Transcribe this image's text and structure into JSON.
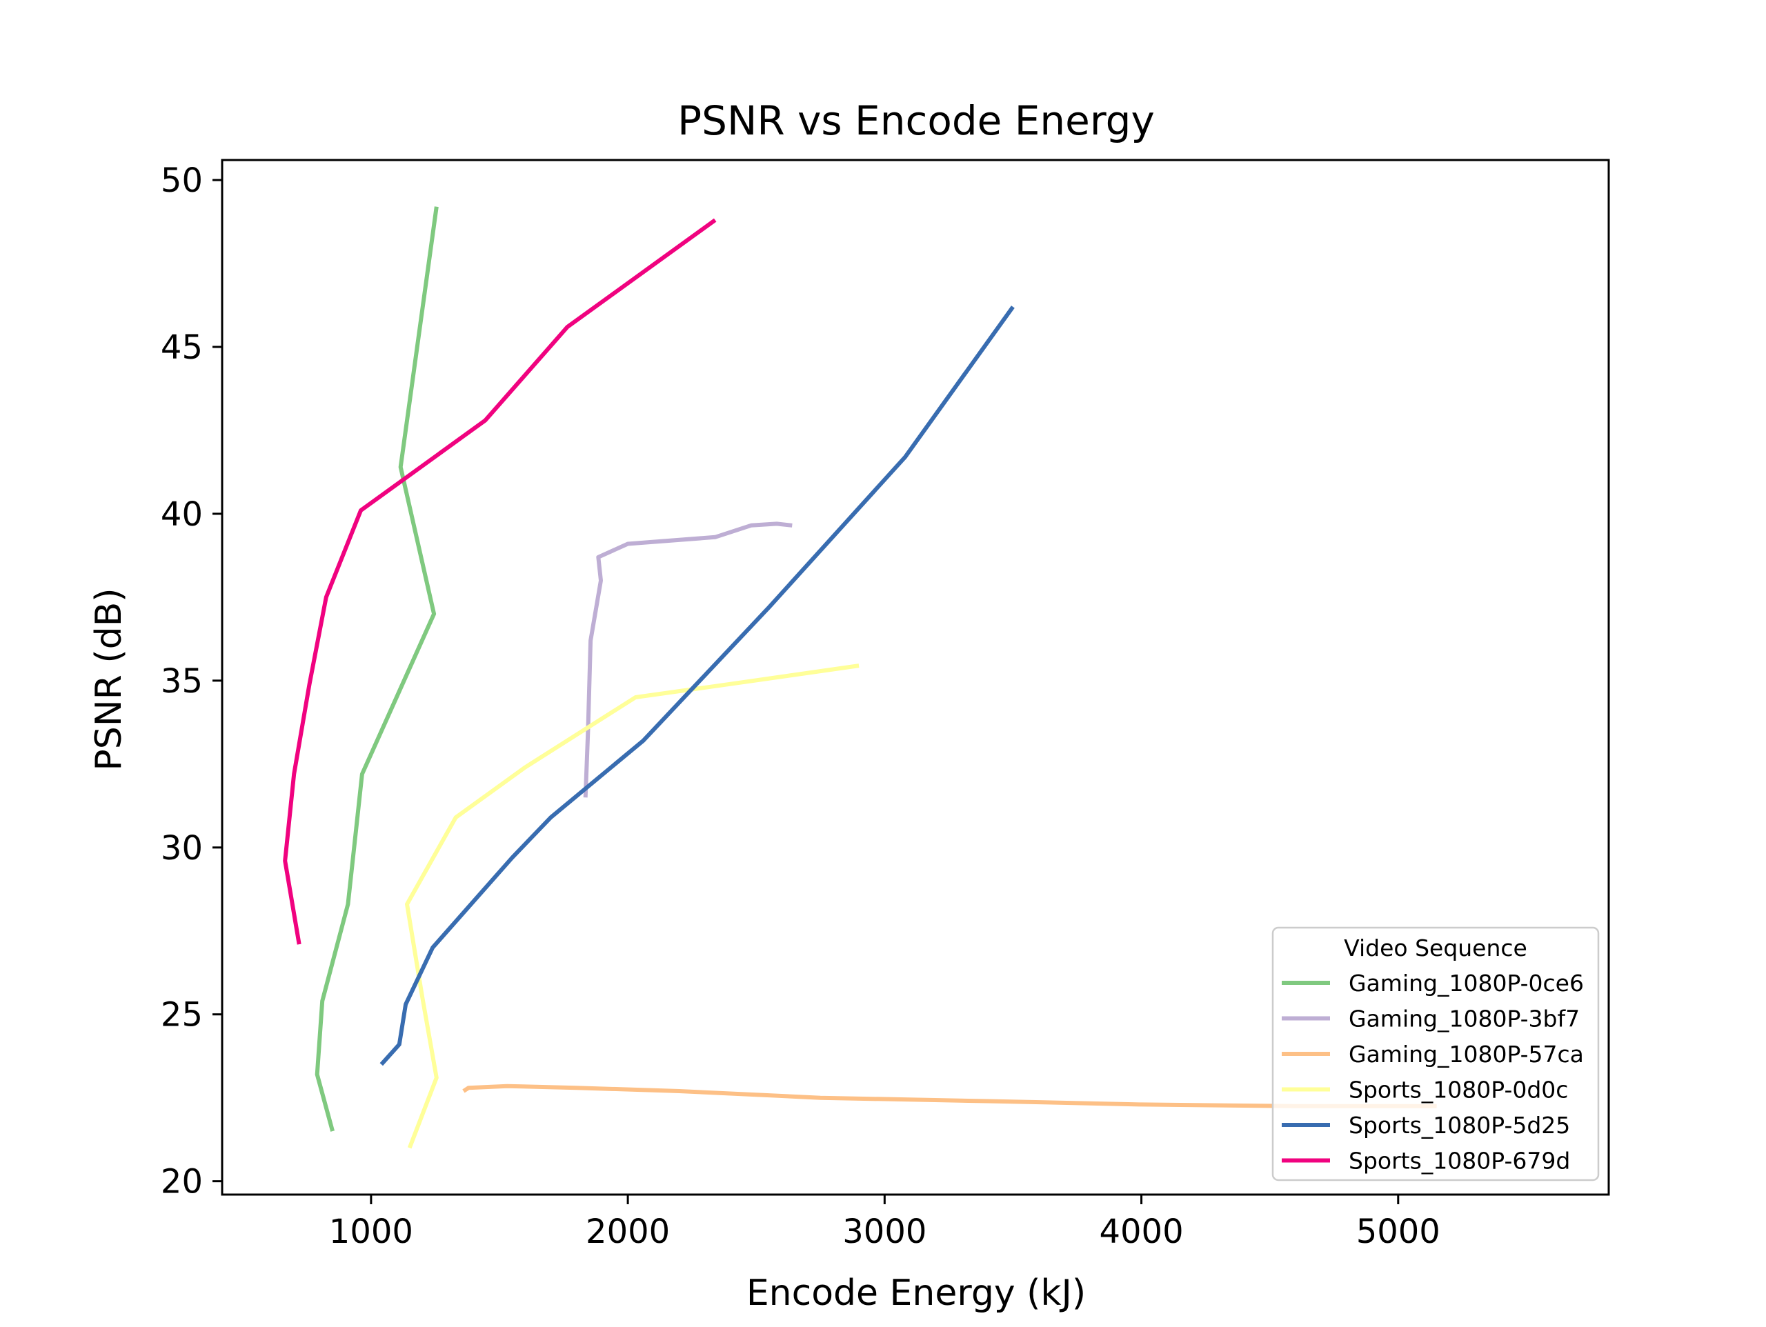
{
  "chart_data": {
    "type": "line",
    "title": "PSNR vs Encode Energy",
    "xlabel": "Encode Energy (kJ)",
    "ylabel": "PSNR (dB)",
    "xlim": [
      420,
      5820
    ],
    "ylim": [
      19.6,
      50.6
    ],
    "xticks": [
      1000,
      2000,
      3000,
      4000,
      5000
    ],
    "yticks": [
      20,
      25,
      30,
      35,
      40,
      45,
      50
    ],
    "grid": false,
    "legend": {
      "title": "Video Sequence",
      "placement": "lower-right"
    },
    "series": [
      {
        "name": "Gaming_1080P-0ce6",
        "color": "#7fc97f",
        "points": [
          [
            850,
            21.5
          ],
          [
            790,
            23.2
          ],
          [
            810,
            25.4
          ],
          [
            910,
            28.3
          ],
          [
            965,
            32.2
          ],
          [
            1245,
            37.0
          ],
          [
            1115,
            41.4
          ],
          [
            1255,
            49.2
          ]
        ]
      },
      {
        "name": "Gaming_1080P-3bf7",
        "color": "#beaed4",
        "points": [
          [
            1835,
            31.5
          ],
          [
            1845,
            33.5
          ],
          [
            1855,
            36.2
          ],
          [
            1895,
            38.0
          ],
          [
            1885,
            38.7
          ],
          [
            2000,
            39.1
          ],
          [
            2340,
            39.3
          ],
          [
            2480,
            39.65
          ],
          [
            2580,
            39.7
          ],
          [
            2640,
            39.65
          ]
        ]
      },
      {
        "name": "Gaming_1080P-57ca",
        "color": "#fdc086",
        "points": [
          [
            1360,
            22.7
          ],
          [
            1380,
            22.8
          ],
          [
            1530,
            22.85
          ],
          [
            1800,
            22.8
          ],
          [
            2200,
            22.7
          ],
          [
            2750,
            22.5
          ],
          [
            3400,
            22.4
          ],
          [
            4000,
            22.3
          ],
          [
            4600,
            22.25
          ],
          [
            5150,
            22.25
          ]
        ]
      },
      {
        "name": "Sports_1080P-0d0c",
        "color": "#ffff99",
        "points": [
          [
            1150,
            21.0
          ],
          [
            1255,
            23.1
          ],
          [
            1200,
            25.5
          ],
          [
            1140,
            28.3
          ],
          [
            1330,
            30.9
          ],
          [
            1600,
            32.4
          ],
          [
            2030,
            34.5
          ],
          [
            2400,
            34.9
          ],
          [
            2900,
            35.45
          ]
        ]
      },
      {
        "name": "Sports_1080P-5d25",
        "color": "#386cb0",
        "points": [
          [
            1040,
            23.5
          ],
          [
            1110,
            24.1
          ],
          [
            1135,
            25.3
          ],
          [
            1240,
            27.0
          ],
          [
            1550,
            29.7
          ],
          [
            1700,
            30.9
          ],
          [
            2060,
            33.2
          ],
          [
            2550,
            37.2
          ],
          [
            3080,
            41.7
          ],
          [
            3500,
            46.2
          ]
        ]
      },
      {
        "name": "Sports_1080P-679d",
        "color": "#f0027f",
        "points": [
          [
            720,
            27.1
          ],
          [
            665,
            29.6
          ],
          [
            700,
            32.2
          ],
          [
            760,
            34.9
          ],
          [
            825,
            37.5
          ],
          [
            960,
            40.1
          ],
          [
            1445,
            42.8
          ],
          [
            1765,
            45.6
          ],
          [
            2340,
            48.8
          ]
        ]
      }
    ]
  }
}
